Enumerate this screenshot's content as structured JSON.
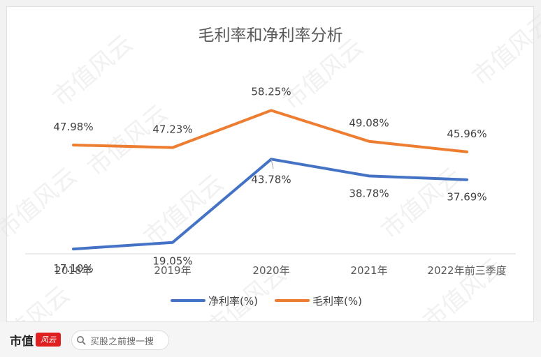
{
  "chart_data": {
    "type": "line",
    "title": "毛利率和净利率分析",
    "categories": [
      "2018年",
      "2019年",
      "2020年",
      "2021年",
      "2022年前三季度"
    ],
    "series": [
      {
        "name": "净利率(%)",
        "color": "#4472c4",
        "values": [
          17.1,
          19.05,
          43.78,
          38.78,
          37.69
        ],
        "labels": [
          "17.10%",
          "19.05%",
          "43.78%",
          "38.78%",
          "37.69%"
        ]
      },
      {
        "name": "毛利率(%)",
        "color": "#ed7d31",
        "values": [
          47.98,
          47.23,
          58.25,
          49.08,
          45.96
        ],
        "labels": [
          "47.98%",
          "47.23%",
          "58.25%",
          "49.08%",
          "45.96%"
        ]
      }
    ],
    "grid": false,
    "legend_position": "bottom"
  },
  "watermark": "市值风云",
  "footer": {
    "brand": "市值",
    "seal": "风云",
    "search_icon": "search-icon",
    "search_text": "买股之前搜一搜"
  }
}
